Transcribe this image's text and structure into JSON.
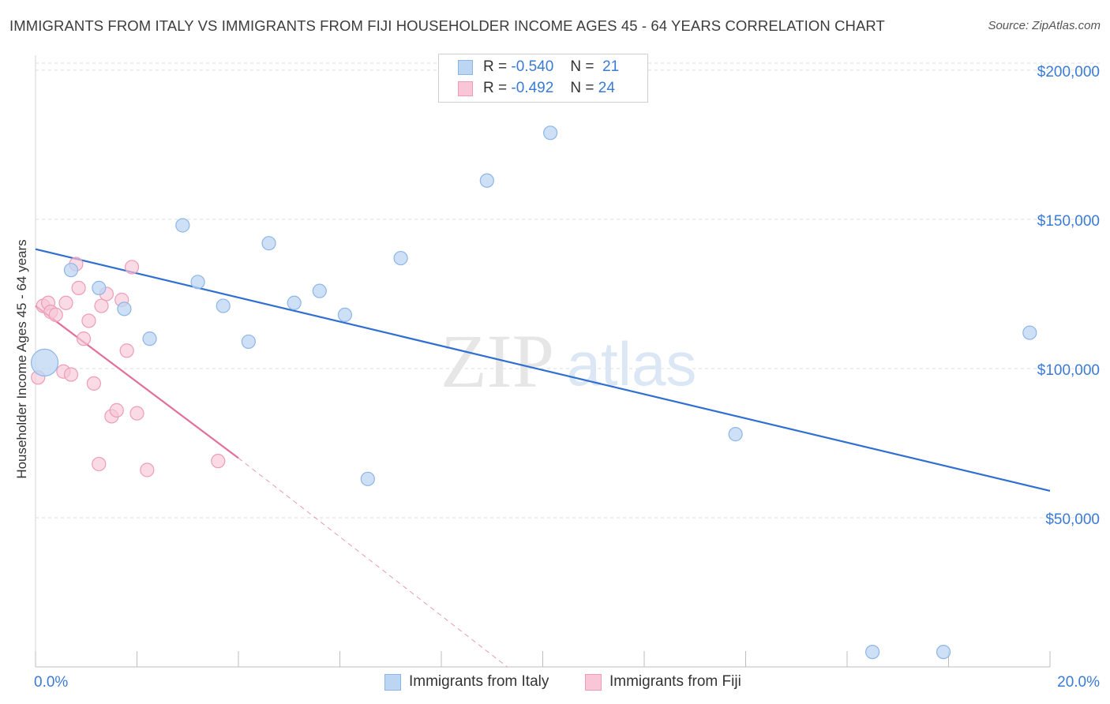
{
  "title": "IMMIGRANTS FROM ITALY VS IMMIGRANTS FROM FIJI HOUSEHOLDER INCOME AGES 45 - 64 YEARS CORRELATION CHART",
  "source": "Source: ZipAtlas.com",
  "watermark": {
    "zip": "ZIP",
    "atlas": "atlas"
  },
  "stats": {
    "italy": {
      "r_label": "R =",
      "r_value": "-0.540",
      "n_label": "N =",
      "n_value": "21"
    },
    "fiji": {
      "r_label": "R =",
      "r_value": "-0.492",
      "n_label": "N =",
      "n_value": "24"
    }
  },
  "legend": {
    "italy": "Immigrants from Italy",
    "fiji": "Immigrants from Fiji"
  },
  "colors": {
    "italy_fill": "#bcd5f3",
    "italy_stroke": "#8db6e8",
    "italy_line": "#2f6fd1",
    "fiji_fill": "#f8c6d6",
    "fiji_stroke": "#ee9cb7",
    "fiji_line": "#e0709a",
    "tick_text": "#3a7bd5",
    "grid": "#dedede"
  },
  "chart_data": {
    "type": "scatter",
    "title": "IMMIGRANTS FROM ITALY VS IMMIGRANTS FROM FIJI HOUSEHOLDER INCOME AGES 45 - 64 YEARS CORRELATION CHART",
    "xlabel": "",
    "ylabel": "Householder Income Ages 45 - 64 years",
    "xlim": [
      0,
      20
    ],
    "ylim": [
      0,
      205000
    ],
    "x_ticks": [
      0,
      2,
      4,
      6,
      8,
      10,
      12,
      14,
      16,
      18,
      20
    ],
    "x_tick_labels": [
      {
        "x": 0,
        "label": "0.0%"
      },
      {
        "x": 20,
        "label": "20.0%"
      }
    ],
    "y_ticks": [
      {
        "y": 50000,
        "label": "$50,000"
      },
      {
        "y": 100000,
        "label": "$100,000"
      },
      {
        "y": 150000,
        "label": "$150,000"
      },
      {
        "y": 200000,
        "label": "$200,000"
      }
    ],
    "grid": true,
    "series": [
      {
        "name": "Immigrants from Italy",
        "points": [
          {
            "x": 0.18,
            "y": 102000,
            "big": true
          },
          {
            "x": 0.7,
            "y": 133000
          },
          {
            "x": 1.25,
            "y": 127000
          },
          {
            "x": 1.75,
            "y": 120000
          },
          {
            "x": 2.25,
            "y": 110000
          },
          {
            "x": 2.9,
            "y": 148000
          },
          {
            "x": 3.2,
            "y": 129000
          },
          {
            "x": 3.7,
            "y": 121000
          },
          {
            "x": 4.2,
            "y": 109000
          },
          {
            "x": 4.6,
            "y": 142000
          },
          {
            "x": 5.1,
            "y": 122000
          },
          {
            "x": 5.6,
            "y": 126000
          },
          {
            "x": 6.1,
            "y": 118000
          },
          {
            "x": 6.55,
            "y": 63000
          },
          {
            "x": 7.2,
            "y": 137000
          },
          {
            "x": 8.9,
            "y": 163000
          },
          {
            "x": 10.15,
            "y": 179000
          },
          {
            "x": 13.8,
            "y": 78000
          },
          {
            "x": 16.5,
            "y": 5000
          },
          {
            "x": 17.9,
            "y": 5000
          },
          {
            "x": 19.6,
            "y": 112000
          }
        ],
        "trend": {
          "x0": 0,
          "y0": 140000,
          "x1": 20,
          "y1": 59000
        }
      },
      {
        "name": "Immigrants from Fiji",
        "points": [
          {
            "x": 0.05,
            "y": 97000
          },
          {
            "x": 0.15,
            "y": 121000
          },
          {
            "x": 0.25,
            "y": 122000
          },
          {
            "x": 0.3,
            "y": 119000
          },
          {
            "x": 0.4,
            "y": 118000
          },
          {
            "x": 0.55,
            "y": 99000
          },
          {
            "x": 0.6,
            "y": 122000
          },
          {
            "x": 0.7,
            "y": 98000
          },
          {
            "x": 0.8,
            "y": 135000
          },
          {
            "x": 0.85,
            "y": 127000
          },
          {
            "x": 0.95,
            "y": 110000
          },
          {
            "x": 1.05,
            "y": 116000
          },
          {
            "x": 1.15,
            "y": 95000
          },
          {
            "x": 1.25,
            "y": 68000
          },
          {
            "x": 1.3,
            "y": 121000
          },
          {
            "x": 1.4,
            "y": 125000
          },
          {
            "x": 1.5,
            "y": 84000
          },
          {
            "x": 1.6,
            "y": 86000
          },
          {
            "x": 1.7,
            "y": 123000
          },
          {
            "x": 1.8,
            "y": 106000
          },
          {
            "x": 1.9,
            "y": 134000
          },
          {
            "x": 2.0,
            "y": 85000
          },
          {
            "x": 2.2,
            "y": 66000
          },
          {
            "x": 3.6,
            "y": 69000
          }
        ],
        "trend": {
          "x0": 0,
          "y0": 121000,
          "x1": 4.0,
          "y1": 70000
        },
        "trend_dashed": {
          "x0": 4.0,
          "y0": 70000,
          "x1": 9.3,
          "y1": 0
        }
      }
    ]
  }
}
